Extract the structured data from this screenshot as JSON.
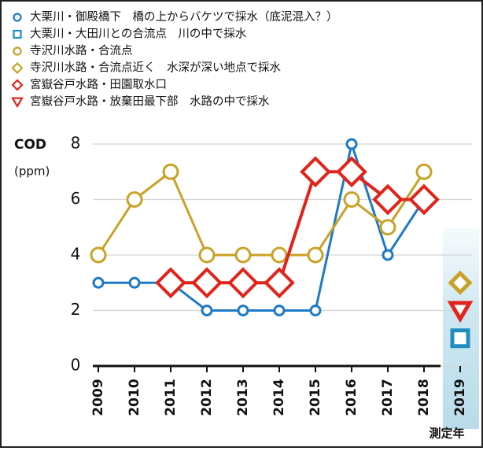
{
  "chart_data": {
    "type": "line",
    "y_label_1": "COD",
    "y_label_2": "(ppm)",
    "x_label": "測定年",
    "categories": [
      "2009",
      "2010",
      "2011",
      "2012",
      "2013",
      "2014",
      "2015",
      "2016",
      "2017",
      "2018",
      "2019"
    ],
    "series": [
      {
        "name": "大栗川・御殿橋下　橋の上からバケツで採水（底泥混入？）",
        "color": "#1e7ac6",
        "marker": "circle",
        "values": [
          3,
          3,
          3,
          2,
          2,
          2,
          2,
          8,
          4,
          6,
          null
        ]
      },
      {
        "name": "大栗川・大田川との合流点　川の中で採水",
        "color": "#1e8fbf",
        "marker": "square",
        "values": [
          null,
          null,
          null,
          null,
          null,
          null,
          null,
          null,
          null,
          null,
          1
        ]
      },
      {
        "name": "寺沢川水路・合流点",
        "color": "#c9a227",
        "marker": "circle-large",
        "values": [
          4,
          6,
          7,
          4,
          4,
          4,
          4,
          6,
          5,
          7,
          null
        ]
      },
      {
        "name": "寺沢川水路・合流点近く　水深が深い地点で採水",
        "color": "#c9a227",
        "marker": "diamond",
        "values": [
          null,
          null,
          null,
          null,
          null,
          null,
          null,
          null,
          null,
          null,
          3
        ]
      },
      {
        "name": "宮嶽谷戸水路・田園取水口",
        "color": "#e2231a",
        "marker": "diamond",
        "values": [
          null,
          null,
          3,
          3,
          3,
          3,
          7,
          7,
          6,
          6,
          null
        ]
      },
      {
        "name": "宮嶽谷戸水路・放棄田最下部　水路の中で採水",
        "color": "#e2231a",
        "marker": "triangle",
        "values": [
          null,
          null,
          null,
          null,
          null,
          null,
          null,
          null,
          null,
          null,
          2
        ]
      }
    ],
    "ylim": [
      0,
      8
    ],
    "yticks": [
      0,
      2,
      4,
      6,
      8
    ],
    "grid": true,
    "highlight_category": "2019"
  }
}
